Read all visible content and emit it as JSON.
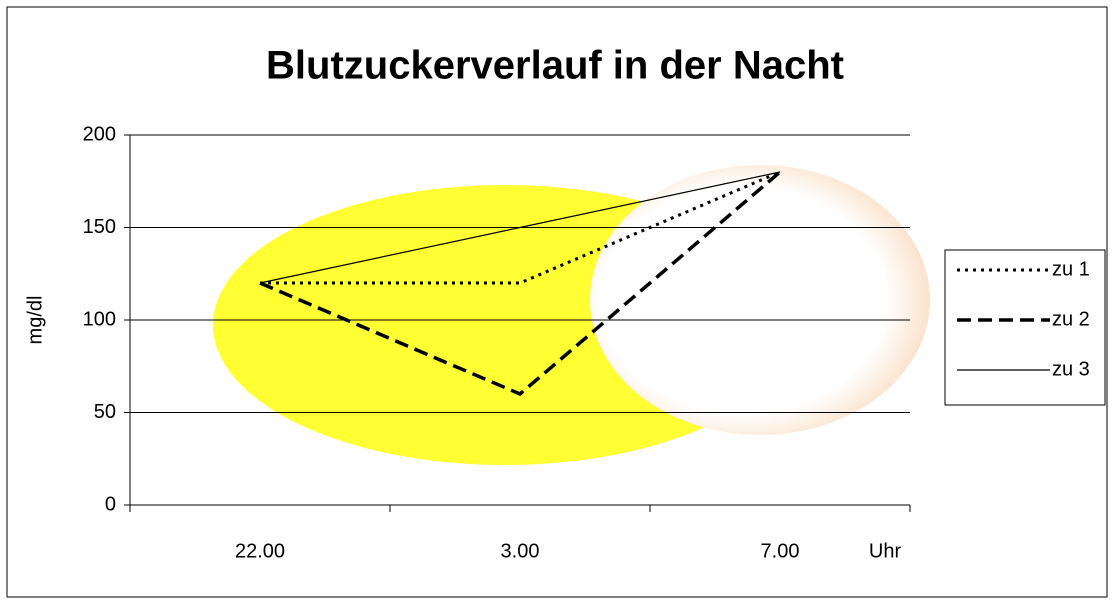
{
  "chart_data": {
    "type": "line",
    "title": "Blutzuckerverlauf in der Nacht",
    "y_label": "mg/dl",
    "x_label": "Uhr",
    "categories": [
      "22.00",
      "3.00",
      "7.00"
    ],
    "series": [
      {
        "name": "zu 1",
        "color": "#000000",
        "dash": "dotted",
        "values": [
          120,
          120,
          180
        ]
      },
      {
        "name": "zu 2",
        "color": "#000000",
        "dash": "dashed",
        "values": [
          120,
          60,
          180
        ]
      },
      {
        "name": "zu 3",
        "color": "#000000",
        "dash": "solid",
        "values": [
          120,
          150,
          180
        ]
      }
    ],
    "ylim": [
      0,
      200
    ],
    "yticks": [
      0,
      50,
      100,
      150,
      200
    ],
    "grid": true,
    "legend": "right"
  }
}
